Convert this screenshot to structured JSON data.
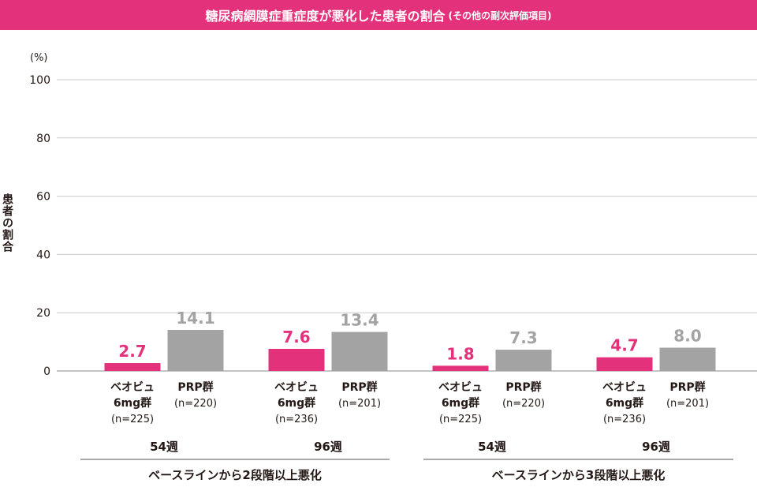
{
  "header": {
    "title": "糖尿病網膜症重症度が悪化した患者の割合",
    "subtitle": "(その他の副次評価項目)"
  },
  "colors": {
    "beovu": "#e4317b",
    "prp": "#a3a3a3",
    "banner": "#e4317b"
  },
  "chart_data": {
    "type": "bar",
    "title": "糖尿病網膜症重症度が悪化した患者の割合",
    "ylabel": "患者の割合",
    "yunit": "(%)",
    "ylim": [
      0,
      100
    ],
    "yticks": [
      "0",
      "20",
      "40",
      "60",
      "80",
      "100"
    ],
    "grid": true,
    "arm_labels": {
      "beovu": [
        "ベオビュ",
        "6mg群"
      ],
      "prp": [
        "PRP群"
      ]
    },
    "groups": [
      {
        "condition": "ベースラインから2段階以上悪化",
        "week": "54週",
        "bars": [
          {
            "arm": "beovu",
            "value": 2.7,
            "label": "2.7",
            "n": "(n=225)"
          },
          {
            "arm": "prp",
            "value": 14.1,
            "label": "14.1",
            "n": "(n=220)"
          }
        ]
      },
      {
        "condition": "ベースラインから2段階以上悪化",
        "week": "96週",
        "bars": [
          {
            "arm": "beovu",
            "value": 7.6,
            "label": "7.6",
            "n": "(n=236)"
          },
          {
            "arm": "prp",
            "value": 13.4,
            "label": "13.4",
            "n": "(n=201)"
          }
        ]
      },
      {
        "condition": "ベースラインから3段階以上悪化",
        "week": "54週",
        "bars": [
          {
            "arm": "beovu",
            "value": 1.8,
            "label": "1.8",
            "n": "(n=225)"
          },
          {
            "arm": "prp",
            "value": 7.3,
            "label": "7.3",
            "n": "(n=220)"
          }
        ]
      },
      {
        "condition": "ベースラインから3段階以上悪化",
        "week": "96週",
        "bars": [
          {
            "arm": "beovu",
            "value": 4.7,
            "label": "4.7",
            "n": "(n=236)"
          },
          {
            "arm": "prp",
            "value": 8.0,
            "label": "8.0",
            "n": "(n=201)"
          }
        ]
      }
    ],
    "conditions": [
      "ベースラインから2段階以上悪化",
      "ベースラインから3段階以上悪化"
    ]
  }
}
